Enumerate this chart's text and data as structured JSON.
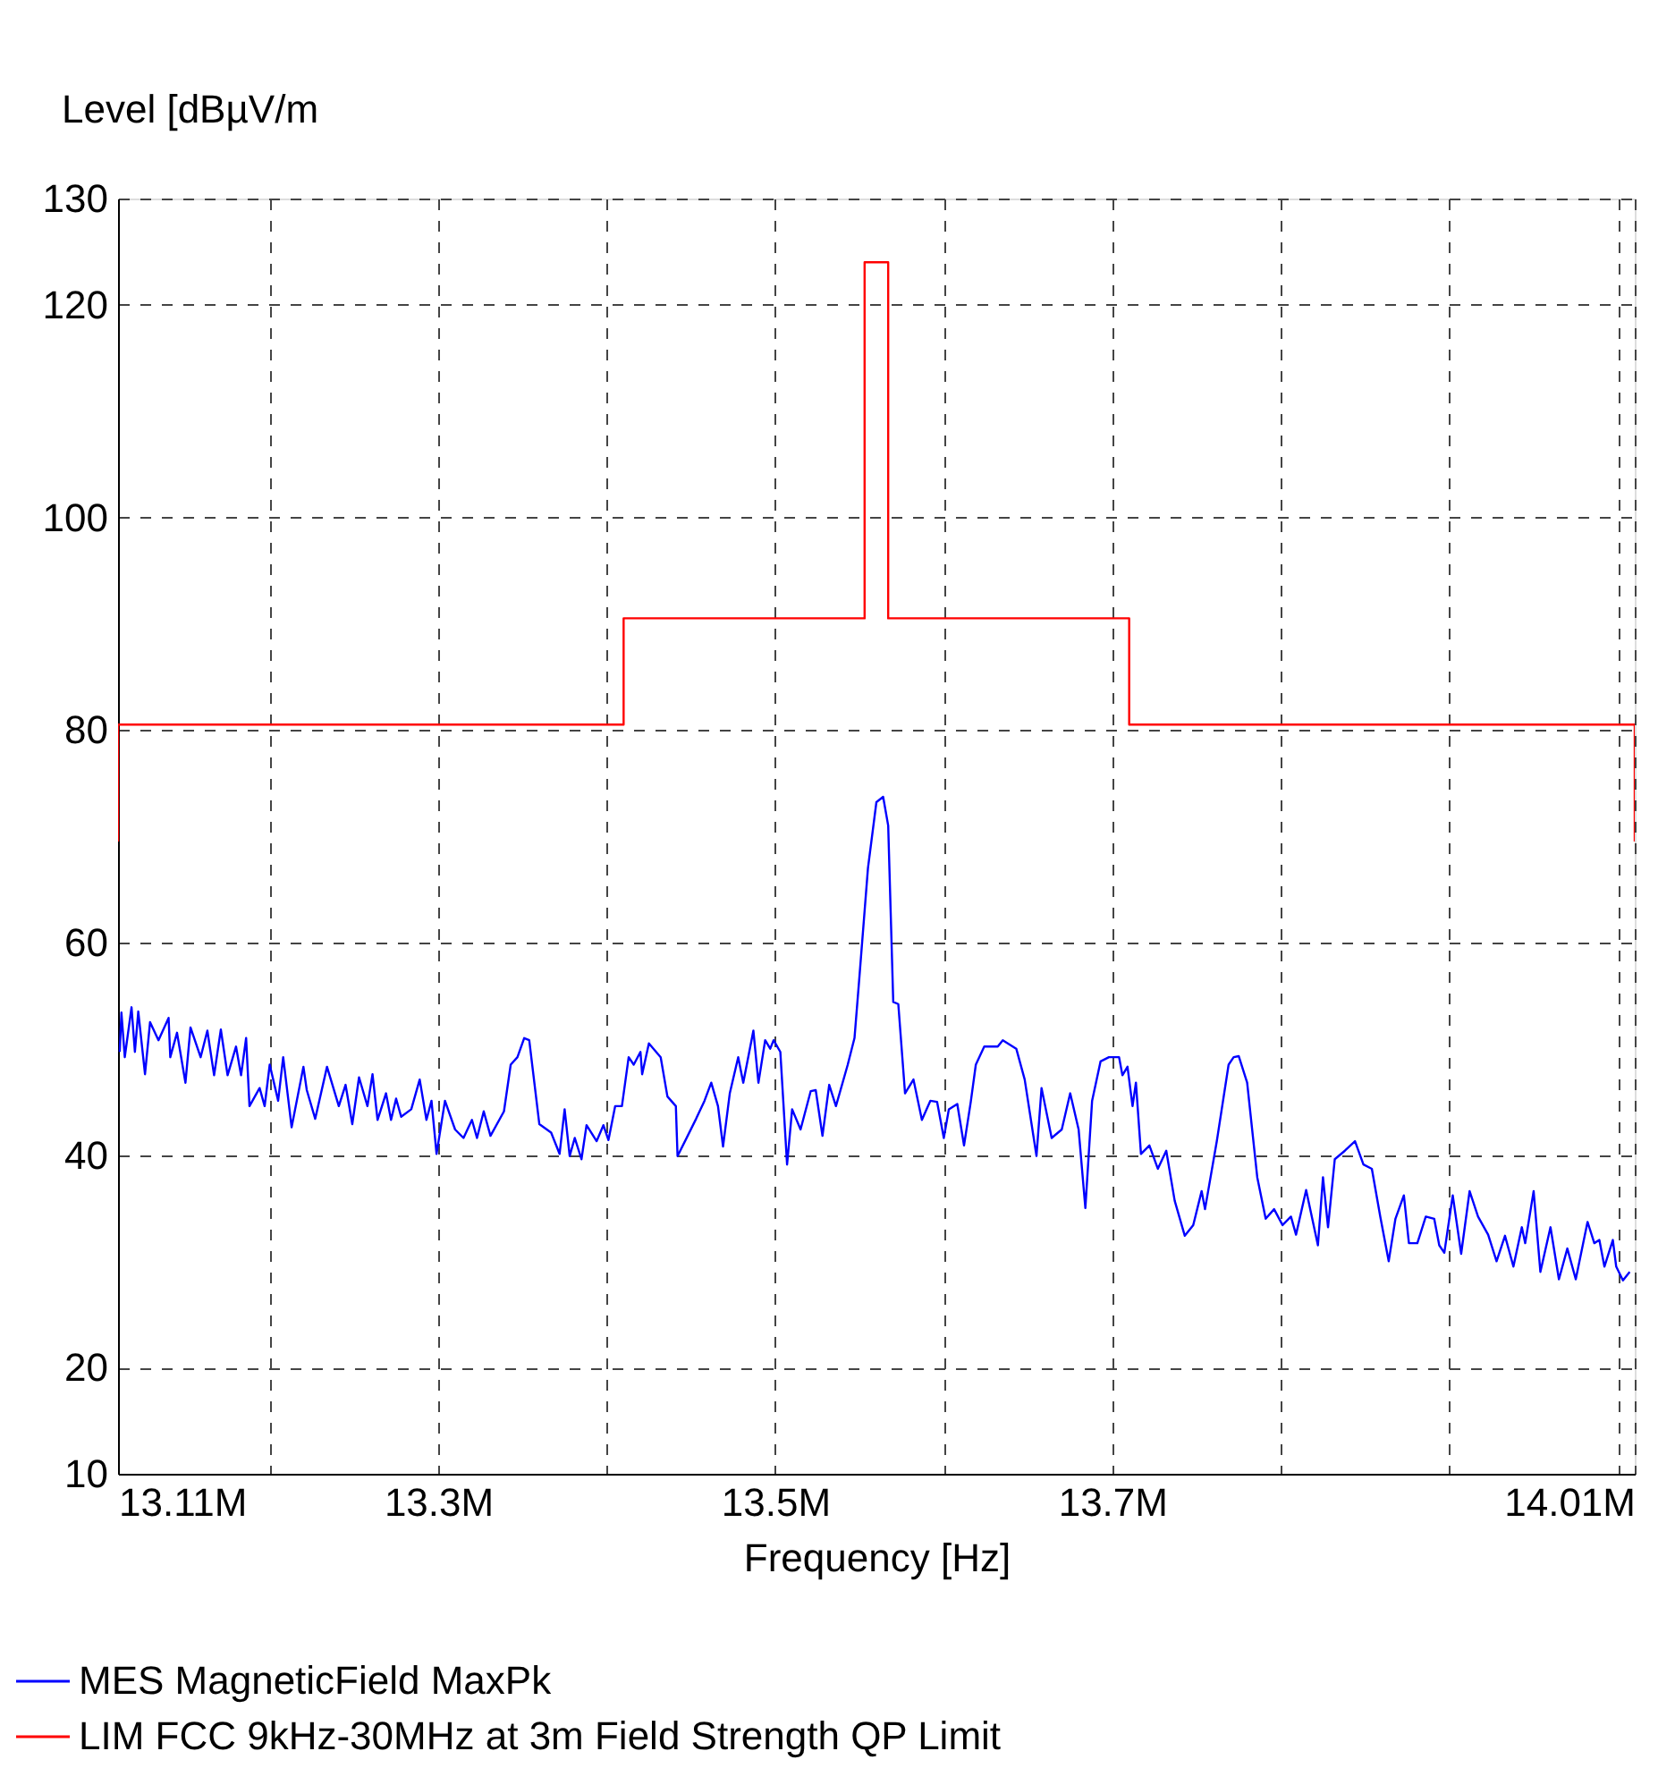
{
  "chart_data": {
    "type": "line",
    "xlabel": "Frequency [Hz]",
    "ylabel": "Level [dBµV/m",
    "xlim": [
      13.11,
      14.01
    ],
    "ylim": [
      10,
      130
    ],
    "xticks": [
      {
        "value": 13.11,
        "label": "13.11M"
      },
      {
        "value": 13.2,
        "label": null
      },
      {
        "value": 13.3,
        "label": "13.3M"
      },
      {
        "value": 13.4,
        "label": null
      },
      {
        "value": 13.5,
        "label": "13.5M"
      },
      {
        "value": 13.6,
        "label": null
      },
      {
        "value": 13.7,
        "label": "13.7M"
      },
      {
        "value": 13.8,
        "label": null
      },
      {
        "value": 13.9,
        "label": null
      },
      {
        "value": 14.0,
        "label": null
      },
      {
        "value": 14.01,
        "label": "14.01M"
      }
    ],
    "yticks": [
      10,
      20,
      40,
      60,
      80,
      100,
      120,
      130
    ],
    "grid": true,
    "legend": "bottom",
    "marker": "none",
    "series": [
      {
        "name": "MES  MagneticField  MaxPk",
        "color": "#0000ff",
        "type": "line",
        "x": [
          13.111,
          13.112,
          13.114,
          13.118,
          13.12,
          13.122,
          13.126,
          13.129,
          13.134,
          13.14,
          13.141,
          13.145,
          13.15,
          13.153,
          13.159,
          13.163,
          13.167,
          13.171,
          13.175,
          13.18,
          13.183,
          13.186,
          13.188,
          13.194,
          13.197,
          13.2,
          13.205,
          13.208,
          13.213,
          13.22,
          13.222,
          13.227,
          13.234,
          13.241,
          13.245,
          13.249,
          13.253,
          13.258,
          13.261,
          13.264,
          13.269,
          13.272,
          13.275,
          13.278,
          13.284,
          13.289,
          13.293,
          13.296,
          13.299,
          13.304,
          13.31,
          13.315,
          13.32,
          13.323,
          13.327,
          13.331,
          13.339,
          13.343,
          13.347,
          13.351,
          13.354,
          13.36,
          13.367,
          13.372,
          13.375,
          13.378,
          13.381,
          13.385,
          13.388,
          13.394,
          13.398,
          13.401,
          13.405,
          13.409,
          13.413,
          13.416,
          13.42,
          13.421,
          13.425,
          13.432,
          13.436,
          13.441,
          13.442,
          13.448,
          13.453,
          13.458,
          13.462,
          13.466,
          13.469,
          13.473,
          13.478,
          13.481,
          13.487,
          13.49,
          13.494,
          13.497,
          13.499,
          13.503,
          13.507,
          13.51,
          13.515,
          13.521,
          13.524,
          13.528,
          13.532,
          13.536,
          13.543,
          13.547,
          13.55,
          13.555,
          13.56,
          13.564,
          13.567,
          13.57,
          13.573,
          13.577,
          13.582,
          13.587,
          13.592,
          13.596,
          13.6,
          13.603,
          13.608,
          13.612,
          13.616,
          13.619,
          13.624,
          13.632,
          13.635,
          13.643,
          13.648,
          13.655,
          13.658,
          13.664,
          13.67,
          13.675,
          13.68,
          13.684,
          13.688,
          13.693,
          13.698,
          13.704,
          13.706,
          13.709,
          13.712,
          13.714,
          13.717,
          13.722,
          13.727,
          13.732,
          13.737,
          13.743,
          13.748,
          13.753,
          13.755,
          13.762,
          13.769,
          13.772,
          13.775,
          13.78,
          13.786,
          13.791,
          13.796,
          13.801,
          13.806,
          13.809,
          13.815,
          13.822,
          13.825,
          13.828,
          13.832,
          13.838,
          13.844,
          13.849,
          13.854,
          13.859,
          13.864,
          13.868,
          13.873,
          13.876,
          13.881,
          13.886,
          13.891,
          13.894,
          13.897,
          13.902,
          13.907,
          13.912,
          13.917,
          13.923,
          13.928,
          13.933,
          13.938,
          13.943,
          13.945,
          13.95,
          13.954,
          13.96,
          13.965,
          13.97,
          13.975,
          13.982,
          13.986,
          13.989,
          13.992,
          13.997,
          13.999,
          14.003,
          14.007
        ],
        "values": [
          49.7,
          53.4,
          49.2,
          53.9,
          49.7,
          53.5,
          47.6,
          52.5,
          50.8,
          52.9,
          49.2,
          51.5,
          46.8,
          52.0,
          49.2,
          51.7,
          47.5,
          51.8,
          47.5,
          50.2,
          47.5,
          51.0,
          44.6,
          46.3,
          44.6,
          48.5,
          45.1,
          49.2,
          42.6,
          48.3,
          46.1,
          43.4,
          48.3,
          44.6,
          46.6,
          42.9,
          47.3,
          44.6,
          47.6,
          43.3,
          45.8,
          43.3,
          45.3,
          43.6,
          44.3,
          47.1,
          43.3,
          45.1,
          40.1,
          45.1,
          42.4,
          41.6,
          43.3,
          41.6,
          44.1,
          41.8,
          44.1,
          48.5,
          49.2,
          51.0,
          50.8,
          42.9,
          42.1,
          40.1,
          44.3,
          39.9,
          41.6,
          39.6,
          42.8,
          41.3,
          42.8,
          41.4,
          44.6,
          44.6,
          49.2,
          48.5,
          49.7,
          47.6,
          50.5,
          49.2,
          45.5,
          44.6,
          39.9,
          41.8,
          43.4,
          45.1,
          46.8,
          44.6,
          40.8,
          45.8,
          49.2,
          46.8,
          51.7,
          46.8,
          50.8,
          50.0,
          50.8,
          49.7,
          39.1,
          44.3,
          42.4,
          46.0,
          46.1,
          41.8,
          46.6,
          44.6,
          48.5,
          51.0,
          56.9,
          67.0,
          73.2,
          73.7,
          71.0,
          54.4,
          54.2,
          45.8,
          47.1,
          43.3,
          45.1,
          45.0,
          41.6,
          44.3,
          44.8,
          40.9,
          45.0,
          48.5,
          50.2,
          50.2,
          50.8,
          50.0,
          47.1,
          39.9,
          46.3,
          41.6,
          42.4,
          45.8,
          42.4,
          35.0,
          45.1,
          48.8,
          49.2,
          49.2,
          47.5,
          48.3,
          44.6,
          46.8,
          40.1,
          40.9,
          38.7,
          40.4,
          35.7,
          32.4,
          33.4,
          36.6,
          34.9,
          41.3,
          48.5,
          49.2,
          49.3,
          46.8,
          37.9,
          34.0,
          34.9,
          33.4,
          34.2,
          32.5,
          36.7,
          31.5,
          37.9,
          33.2,
          39.6,
          40.4,
          41.3,
          39.1,
          38.7,
          34.2,
          30.0,
          34.0,
          36.2,
          31.7,
          31.7,
          34.2,
          34.0,
          31.5,
          30.8,
          36.2,
          30.7,
          36.6,
          34.2,
          32.5,
          30.0,
          32.4,
          29.5,
          33.2,
          31.7,
          36.6,
          29.0,
          33.2,
          28.3,
          31.2,
          28.3,
          33.7,
          31.7,
          32.0,
          29.5,
          32.0,
          29.5,
          28.2,
          29.0
        ]
      },
      {
        "name": "LIM  FCC 9kHz-30MHz at 3m  Field Strength QP Limit",
        "color": "#ff0000",
        "type": "step",
        "x": [
          13.11,
          13.11,
          13.41,
          13.553,
          13.567,
          13.71,
          14.01,
          14.01
        ],
        "values": [
          69.5,
          80.5,
          90.5,
          124.0,
          90.5,
          80.5,
          80.5,
          69.5
        ]
      }
    ]
  }
}
